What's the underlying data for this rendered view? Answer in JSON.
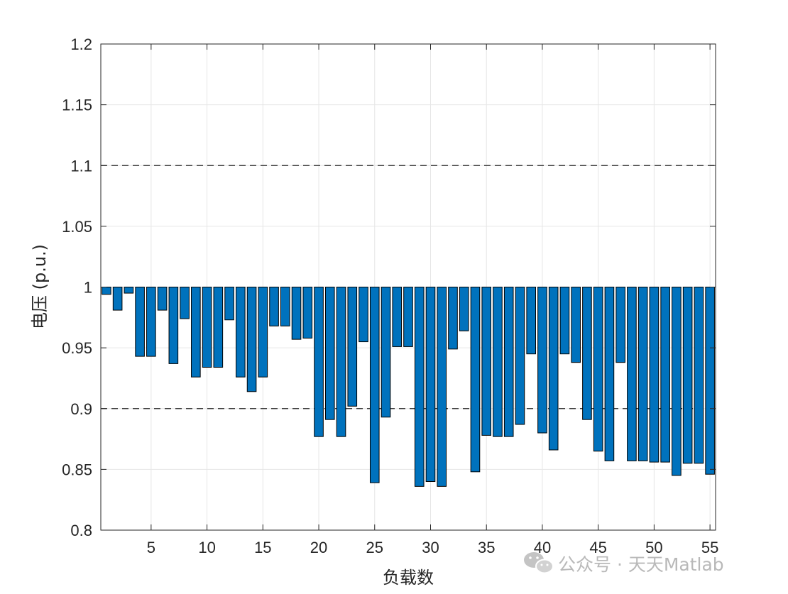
{
  "chart_data": {
    "type": "bar",
    "xlabel": "负载数",
    "ylabel": "电压 (p.u.)",
    "xlim": [
      0.5,
      55.5
    ],
    "ylim": [
      0.8,
      1.2
    ],
    "baseline": 1.0,
    "grid": true,
    "x_ticks": [
      5,
      10,
      15,
      20,
      25,
      30,
      35,
      40,
      45,
      50,
      55
    ],
    "y_ticks": [
      0.8,
      0.85,
      0.9,
      0.95,
      1,
      1.05,
      1.1,
      1.15,
      1.2
    ],
    "y_tick_labels": [
      "0.8",
      "0.85",
      "0.9",
      "0.95",
      "1",
      "1.05",
      "1.1",
      "1.15",
      "1.2"
    ],
    "reference_lines": [
      0.9,
      1.1
    ],
    "bar_color": "#0072BD",
    "x": [
      1,
      2,
      3,
      4,
      5,
      6,
      7,
      8,
      9,
      10,
      11,
      12,
      13,
      14,
      15,
      16,
      17,
      18,
      19,
      20,
      21,
      22,
      23,
      24,
      25,
      26,
      27,
      28,
      29,
      30,
      31,
      32,
      33,
      34,
      35,
      36,
      37,
      38,
      39,
      40,
      41,
      42,
      43,
      44,
      45,
      46,
      47,
      48,
      49,
      50,
      51,
      52,
      53,
      54,
      55
    ],
    "values": [
      0.994,
      0.981,
      0.995,
      0.943,
      0.943,
      0.981,
      0.937,
      0.974,
      0.926,
      0.934,
      0.934,
      0.973,
      0.926,
      0.914,
      0.926,
      0.968,
      0.968,
      0.957,
      0.958,
      0.877,
      0.891,
      0.877,
      0.902,
      0.955,
      0.839,
      0.893,
      0.951,
      0.951,
      0.836,
      0.84,
      0.836,
      0.949,
      0.964,
      0.848,
      0.878,
      0.877,
      0.877,
      0.887,
      0.945,
      0.88,
      0.866,
      0.945,
      0.938,
      0.891,
      0.865,
      0.857,
      0.938,
      0.857,
      0.857,
      0.856,
      0.856,
      0.845,
      0.855,
      0.855,
      0.846
    ]
  },
  "watermark": {
    "text": "公众号 · 天天Matlab",
    "icon": "wechat-icon"
  }
}
